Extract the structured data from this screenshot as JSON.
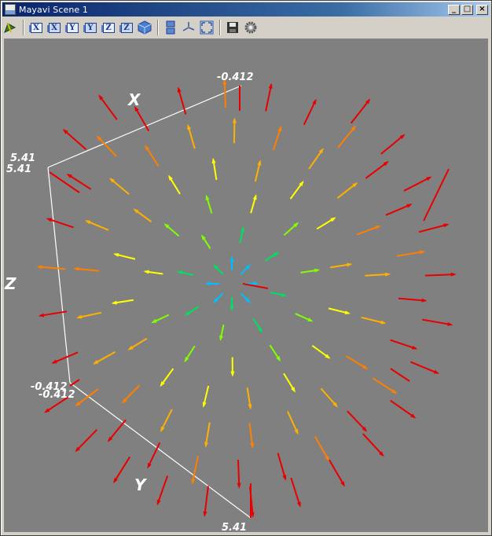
{
  "window": {
    "title": "Mayavi Scene 1"
  },
  "window_controls": {
    "minimize": "_",
    "maximize": "□",
    "close": "×"
  },
  "toolbar": {
    "buttons": [
      {
        "icon": "mayavi-engine-icon"
      },
      {
        "icon": "view-x-positive-icon",
        "letter": "X"
      },
      {
        "icon": "view-x-negative-icon",
        "letter": "X"
      },
      {
        "icon": "view-y-positive-icon",
        "letter": "Y"
      },
      {
        "icon": "view-y-negative-icon",
        "letter": "Y"
      },
      {
        "icon": "view-z-positive-icon",
        "letter": "Z"
      },
      {
        "icon": "view-z-negative-icon",
        "letter": "Z"
      },
      {
        "icon": "isometric-view-icon"
      },
      {
        "icon": "parallel-projection-icon"
      },
      {
        "icon": "axes-indicator-icon"
      },
      {
        "icon": "full-screen-icon"
      },
      {
        "icon": "save-icon"
      },
      {
        "icon": "configure-scene-icon"
      }
    ]
  },
  "scene": {
    "background_color": "#808080",
    "axes": {
      "x_title": "X",
      "y_title": "Y",
      "z_title": "Z",
      "x_min_label": "5.41",
      "x_min_label_2": "5.41",
      "x_max_label": "-0.412",
      "z_min_label": "-0.412",
      "z_min_label_2": "-0.412",
      "y_max_label": "5.41"
    },
    "colormap": [
      "#00bfff",
      "#00e060",
      "#80ff00",
      "#ffff00",
      "#ffb000",
      "#ff7f00",
      "#e80000"
    ]
  }
}
